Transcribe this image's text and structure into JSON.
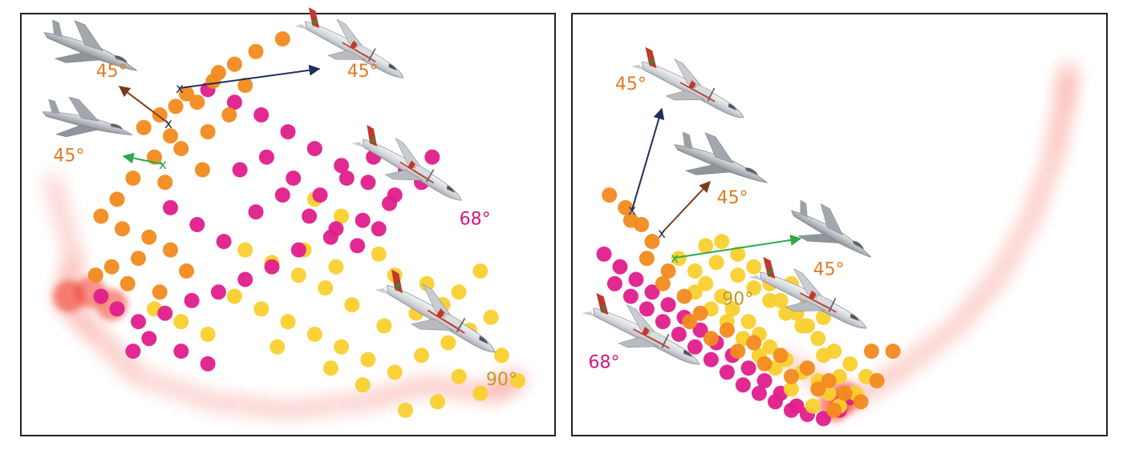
{
  "colors": {
    "orange": "#f28a1e",
    "magenta": "#e01e8c",
    "yellow": "#f9d02e",
    "red_density": "#f03a2a",
    "orange_label": "#e07b24",
    "magenta_label": "#d6177f",
    "gold_label": "#c8961e",
    "arrow_navy": "#1f2f5c",
    "arrow_brown": "#7a3b1c",
    "arrow_green": "#2ea84a",
    "frame": "#222222"
  },
  "chart_data": [
    {
      "type": "scatter",
      "title": "",
      "xlabel": "",
      "ylabel": "",
      "xlim": [
        0,
        100
      ],
      "ylim": [
        0,
        100
      ],
      "grid": false,
      "series": [
        {
          "group": "orange",
          "points": [
            [
              49,
              94
            ],
            [
              44,
              91
            ],
            [
              40,
              88
            ],
            [
              36,
              84
            ],
            [
              31,
              81
            ],
            [
              29,
              78
            ],
            [
              26,
              76
            ],
            [
              23,
              73
            ],
            [
              28,
              71
            ],
            [
              33,
              79
            ],
            [
              37,
              86
            ],
            [
              42,
              83
            ],
            [
              39,
              76
            ],
            [
              35,
              72
            ],
            [
              30,
              68
            ],
            [
              25,
              66
            ],
            [
              21,
              61
            ],
            [
              18,
              56
            ],
            [
              15,
              52
            ],
            [
              19,
              49
            ],
            [
              24,
              47
            ],
            [
              28,
              44
            ],
            [
              22,
              42
            ],
            [
              17,
              40
            ],
            [
              14,
              38
            ],
            [
              20,
              36
            ],
            [
              26,
              34
            ],
            [
              31,
              39
            ],
            [
              34,
              63
            ],
            [
              27,
              60
            ]
          ]
        },
        {
          "group": "magenta",
          "points": [
            [
              35,
              82
            ],
            [
              40,
              79
            ],
            [
              45,
              76
            ],
            [
              50,
              72
            ],
            [
              55,
              68
            ],
            [
              60,
              64
            ],
            [
              65,
              60
            ],
            [
              70,
              57
            ],
            [
              75,
              60
            ],
            [
              69,
              55
            ],
            [
              64,
              51
            ],
            [
              58,
              47
            ],
            [
              52,
              44
            ],
            [
              47,
              40
            ],
            [
              42,
              37
            ],
            [
              37,
              34
            ],
            [
              32,
              32
            ],
            [
              27,
              29
            ],
            [
              22,
              27
            ],
            [
              18,
              30
            ],
            [
              15,
              33
            ],
            [
              24,
              23
            ],
            [
              30,
              20
            ],
            [
              35,
              17
            ],
            [
              44,
              53
            ],
            [
              49,
              57
            ],
            [
              54,
              52
            ],
            [
              59,
              49
            ],
            [
              63,
              45
            ],
            [
              67,
              49
            ],
            [
              38,
              46
            ],
            [
              33,
              50
            ],
            [
              28,
              54
            ],
            [
              41,
              63
            ],
            [
              46,
              66
            ],
            [
              51,
              61
            ],
            [
              56,
              57
            ],
            [
              61,
              61
            ],
            [
              66,
              66
            ],
            [
              72,
              63
            ],
            [
              77,
              66
            ],
            [
              21,
              20
            ]
          ]
        },
        {
          "group": "yellow",
          "points": [
            [
              40,
              33
            ],
            [
              45,
              30
            ],
            [
              50,
              27
            ],
            [
              55,
              24
            ],
            [
              60,
              21
            ],
            [
              65,
              18
            ],
            [
              70,
              15
            ],
            [
              75,
              19
            ],
            [
              80,
              22
            ],
            [
              84,
              25
            ],
            [
              88,
              28
            ],
            [
              79,
              31
            ],
            [
              74,
              29
            ],
            [
              68,
              26
            ],
            [
              62,
              31
            ],
            [
              57,
              35
            ],
            [
              52,
              38
            ],
            [
              47,
              41
            ],
            [
              42,
              44
            ],
            [
              70,
              38
            ],
            [
              76,
              36
            ],
            [
              82,
              34
            ],
            [
              86,
              39
            ],
            [
              90,
              19
            ],
            [
              93,
              13
            ],
            [
              86,
              10
            ],
            [
              78,
              8
            ],
            [
              72,
              6
            ],
            [
              35,
              24
            ],
            [
              30,
              27
            ],
            [
              25,
              30
            ],
            [
              64,
              12
            ],
            [
              58,
              16
            ],
            [
              53,
              44
            ],
            [
              59,
              40
            ],
            [
              48,
              21
            ],
            [
              82,
              14
            ],
            [
              60,
              52
            ],
            [
              55,
              56
            ],
            [
              67,
              43
            ]
          ]
        }
      ],
      "annotations": [
        {
          "text": "45°",
          "x": 17,
          "y": 85,
          "color": "orange_label"
        },
        {
          "text": "45°",
          "x": 64,
          "y": 85,
          "color": "orange_label"
        },
        {
          "text": "45°",
          "x": 9,
          "y": 65,
          "color": "orange_label"
        },
        {
          "text": "68°",
          "x": 85,
          "y": 50,
          "color": "magenta_label"
        },
        {
          "text": "90°",
          "x": 90,
          "y": 12,
          "color": "gold_label"
        }
      ]
    },
    {
      "type": "scatter",
      "title": "",
      "xlabel": "",
      "ylabel": "",
      "xlim": [
        0,
        100
      ],
      "ylim": [
        0,
        100
      ],
      "grid": false,
      "series": [
        {
          "group": "orange",
          "points": [
            [
              7,
              57
            ],
            [
              10,
              54
            ],
            [
              13,
              50
            ],
            [
              15,
              46
            ],
            [
              11,
              51
            ],
            [
              14,
              42
            ],
            [
              18,
              39
            ],
            [
              17,
              36
            ],
            [
              21,
              33
            ],
            [
              24,
              29
            ],
            [
              29,
              25
            ],
            [
              34,
              22
            ],
            [
              39,
              19
            ],
            [
              44,
              16
            ],
            [
              48,
              13
            ],
            [
              51,
              10
            ],
            [
              46,
              11
            ],
            [
              41,
              14
            ],
            [
              36,
              17
            ],
            [
              31,
              20
            ],
            [
              26,
              23
            ],
            [
              22,
              27
            ],
            [
              49,
              6
            ],
            [
              54,
              8
            ],
            [
              57,
              13
            ],
            [
              56,
              20
            ],
            [
              60,
              20
            ]
          ]
        },
        {
          "group": "magenta",
          "points": [
            [
              6,
              43
            ],
            [
              9,
              40
            ],
            [
              12,
              37
            ],
            [
              15,
              34
            ],
            [
              18,
              31
            ],
            [
              21,
              28
            ],
            [
              24,
              25
            ],
            [
              27,
              22
            ],
            [
              30,
              19
            ],
            [
              33,
              16
            ],
            [
              36,
              13
            ],
            [
              39,
              10
            ],
            [
              42,
              7
            ],
            [
              44,
              5
            ],
            [
              47,
              4
            ],
            [
              50,
              6
            ],
            [
              52,
              9
            ],
            [
              8,
              36
            ],
            [
              11,
              33
            ],
            [
              14,
              30
            ],
            [
              17,
              27
            ],
            [
              20,
              24
            ],
            [
              23,
              21
            ],
            [
              26,
              18
            ],
            [
              29,
              15
            ],
            [
              32,
              12
            ],
            [
              35,
              10
            ],
            [
              38,
              8
            ],
            [
              41,
              6
            ]
          ]
        },
        {
          "group": "yellow",
          "points": [
            [
              20,
              42
            ],
            [
              23,
              39
            ],
            [
              25,
              36
            ],
            [
              28,
              33
            ],
            [
              30,
              30
            ],
            [
              33,
              27
            ],
            [
              35,
              24
            ],
            [
              37,
              21
            ],
            [
              40,
              18
            ],
            [
              43,
              15
            ],
            [
              46,
              13
            ],
            [
              48,
              10
            ],
            [
              50,
              7
            ],
            [
              53,
              10
            ],
            [
              55,
              14
            ],
            [
              52,
              17
            ],
            [
              49,
              20
            ],
            [
              46,
              23
            ],
            [
              43,
              26
            ],
            [
              40,
              29
            ],
            [
              37,
              32
            ],
            [
              34,
              35
            ],
            [
              31,
              38
            ],
            [
              27,
              41
            ],
            [
              25,
              45
            ],
            [
              28,
              46
            ],
            [
              31,
              43
            ],
            [
              34,
              40
            ],
            [
              37,
              36
            ],
            [
              39,
              32
            ],
            [
              42,
              29
            ],
            [
              44,
              26
            ],
            [
              47,
              19
            ],
            [
              50,
              14
            ],
            [
              45,
              7
            ],
            [
              41,
              11
            ],
            [
              38,
              16
            ],
            [
              35,
              19
            ],
            [
              32,
              23
            ],
            [
              29,
              27
            ],
            [
              26,
              30
            ],
            [
              23,
              34
            ],
            [
              41,
              36
            ],
            [
              44,
              32
            ],
            [
              47,
              28
            ]
          ]
        }
      ],
      "annotations": [
        {
          "text": "45°",
          "x": 11,
          "y": 82,
          "color": "orange_label"
        },
        {
          "text": "45°",
          "x": 30,
          "y": 55,
          "color": "orange_label"
        },
        {
          "text": "45°",
          "x": 48,
          "y": 38,
          "color": "orange_label"
        },
        {
          "text": "90°",
          "x": 31,
          "y": 31,
          "color": "gold_label"
        },
        {
          "text": "68°",
          "x": 6,
          "y": 16,
          "color": "magenta_label"
        }
      ]
    }
  ]
}
